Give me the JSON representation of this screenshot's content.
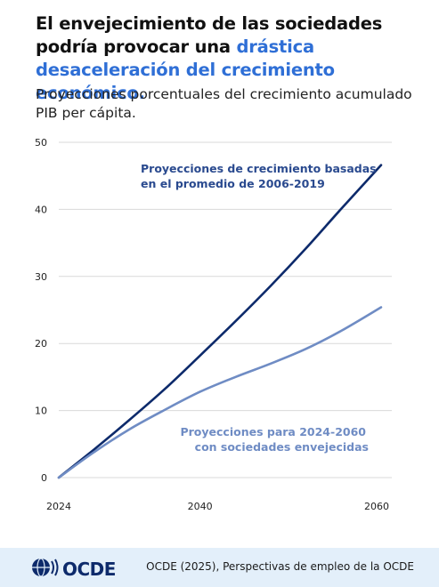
{
  "header": {
    "title_part1": "El envejecimiento de las sociedades podría provocar una ",
    "title_highlight": "drástica desaceleración del crecimiento económico.",
    "subtitle": "Proyecciones porcentuales del crecimiento acumulado PIB per cápita."
  },
  "colors": {
    "highlight": "#2f6fd6",
    "series_dark": "#0d2a6b",
    "series_light": "#6f8cc4"
  },
  "chart_data": {
    "type": "line",
    "xlim": [
      2024,
      2060
    ],
    "ylim": [
      0,
      50
    ],
    "x_ticks": [
      "2024",
      "2040",
      "2060"
    ],
    "x_tick_values": [
      2024,
      2040,
      2060
    ],
    "y_ticks": [
      "0",
      "10",
      "20",
      "30",
      "40",
      "50"
    ],
    "y_tick_values": [
      0,
      10,
      20,
      30,
      40,
      50
    ],
    "grid": true,
    "series": [
      {
        "label_line1": "Proyecciones de crecimiento basadas",
        "label_line2": "en el promedio de 2006-2019",
        "color": "#0d2a6b",
        "x": [
          2024,
          2028,
          2032,
          2036,
          2040,
          2044,
          2048,
          2052,
          2056,
          2060.5
        ],
        "y": [
          0,
          4.2,
          8.6,
          13.2,
          18.2,
          23.3,
          28.6,
          34.2,
          40.1,
          46.6
        ]
      },
      {
        "label_line1": "Proyecciones para 2024-2060",
        "label_line2": "con sociedades envejecidas",
        "color": "#6f8cc4",
        "x": [
          2024,
          2028,
          2032,
          2036,
          2040,
          2044,
          2048,
          2052,
          2056,
          2060.5
        ],
        "y": [
          0,
          3.8,
          7.2,
          10.1,
          12.8,
          15.0,
          17.0,
          19.2,
          21.9,
          25.4
        ]
      }
    ]
  },
  "footer": {
    "logo_text": "OCDE",
    "source": "OCDE (2025), Perspectivas de empleo de la OCDE"
  }
}
